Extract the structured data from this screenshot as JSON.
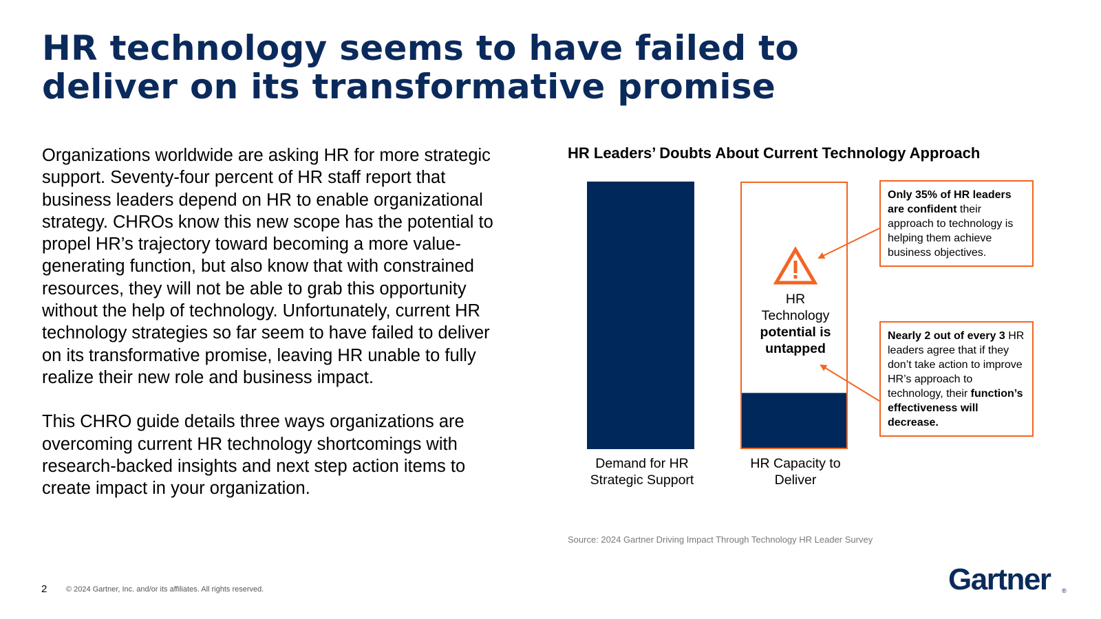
{
  "slide": {
    "title_line1": "HR technology seems to have failed to",
    "title_line2": "deliver on its transformative promise",
    "paragraph1": "Organizations worldwide are asking HR for more strategic support. Seventy-four percent of HR staff report that business leaders depend on HR to enable organizational strategy. CHROs know this new scope has the potential to propel HR’s trajectory toward becoming a more value-generating function, but also know that with constrained resources, they will not be able to grab this opportunity without the help of technology. Unfortunately, current HR technology strategies so far seem to have failed to deliver on its transformative promise, leaving HR unable to fully realize their new role and business impact.",
    "paragraph2": "This CHRO guide details three ways organizations are overcoming current HR technology shortcomings with research-backed insights and next step action items to create impact in your organization."
  },
  "chart_data": {
    "type": "bar",
    "title": "HR Leaders’ Doubts About Current Technology Approach",
    "categories": [
      "Demand for HR Strategic Support",
      "HR Capacity to Deliver"
    ],
    "values": [
      1.0,
      0.21
    ],
    "untapped_outline": [
      0,
      1.0
    ],
    "ylim": [
      0,
      1
    ],
    "bar_color": "#00285a",
    "outline_color": "#f26522",
    "inner_label": {
      "line1": "HR",
      "line2": "Technology",
      "line3": "potential is",
      "line4": "untapped"
    },
    "callouts": [
      {
        "bold": "Only 35% of HR leaders are confident",
        "text": " their approach to technology is helping them achieve business objectives."
      },
      {
        "bold": "Nearly 2 out of every 3",
        "text": " HR leaders agree that if they don’t take action to improve HR’s approach to technology, their ",
        "bold2": "function’s effectiveness will decrease."
      }
    ],
    "source": "Source: 2024 Gartner Driving Impact Through Technology HR Leader Survey"
  },
  "footer": {
    "page_number": "2",
    "copyright": "© 2024 Gartner, Inc. and/or its affiliates. All rights reserved.",
    "logo_text": "Gartner",
    "logo_mark": "®"
  },
  "colors": {
    "title": "#0b2a5c",
    "bar": "#00285a",
    "accent": "#f26522"
  },
  "icons": {
    "warning": "warning-triangle-icon"
  }
}
